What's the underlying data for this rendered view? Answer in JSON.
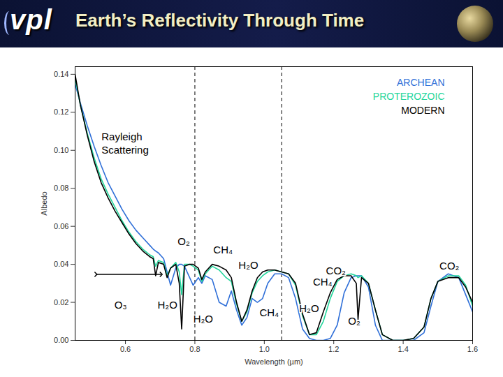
{
  "header": {
    "logo": "vpl"
  },
  "chart_data": {
    "type": "line",
    "title": "Earth’s Reflectivity Through Time",
    "x_label": "Wavelength (µm)",
    "y_label": "Albedo",
    "xlim": [
      0.455,
      1.6
    ],
    "ylim": [
      0,
      0.144
    ],
    "xticks": [
      0.6,
      0.8,
      {
        "value": 1,
        "label": "1.0"
      },
      1.2,
      1.4,
      1.6
    ],
    "yticks": [
      {
        "value": 0,
        "label": "0.00"
      },
      0.02,
      0.04,
      0.06,
      0.08,
      {
        "value": 0.1,
        "label": "0.10"
      },
      0.12,
      0.14
    ],
    "grid": false,
    "legend": "top-right",
    "x": [
      0.455,
      0.47,
      0.49,
      0.51,
      0.53,
      0.55,
      0.57,
      0.59,
      0.61,
      0.63,
      0.65,
      0.67,
      0.68,
      0.687,
      0.695,
      0.71,
      0.72,
      0.73,
      0.745,
      0.755,
      0.762,
      0.77,
      0.785,
      0.795,
      0.81,
      0.82,
      0.83,
      0.85,
      0.87,
      0.89,
      0.905,
      0.92,
      0.935,
      0.95,
      0.965,
      0.98,
      0.995,
      1.01,
      1.03,
      1.05,
      1.07,
      1.09,
      1.11,
      1.13,
      1.15,
      1.17,
      1.19,
      1.21,
      1.23,
      1.25,
      1.265,
      1.27,
      1.28,
      1.3,
      1.32,
      1.34,
      1.37,
      1.4,
      1.43,
      1.46,
      1.48,
      1.5,
      1.53,
      1.56,
      1.58,
      1.6
    ],
    "series": [
      {
        "name": "ARCHEAN",
        "color": "#2f6fd8",
        "values": [
          0.135,
          0.125,
          0.113,
          0.102,
          0.092,
          0.083,
          0.076,
          0.069,
          0.063,
          0.058,
          0.054,
          0.05,
          0.048,
          0.047,
          0.046,
          0.043,
          0.036,
          0.029,
          0.038,
          0.04,
          0.04,
          0.039,
          0.033,
          0.029,
          0.033,
          0.03,
          0.034,
          0.032,
          0.02,
          0.018,
          0.026,
          0.016,
          0.008,
          0.012,
          0.022,
          0.02,
          0.022,
          0.03,
          0.035,
          0.035,
          0.033,
          0.022,
          0.006,
          0.001,
          0,
          0,
          0.001,
          0.008,
          0.025,
          0.033,
          0.034,
          0.034,
          0.034,
          0.028,
          0.008,
          0,
          0,
          0,
          0,
          0.004,
          0.018,
          0.031,
          0.035,
          0.033,
          0.024,
          0.015
        ]
      },
      {
        "name": "PROTEROZOIC",
        "color": "#22d69c",
        "values": [
          0.138,
          0.124,
          0.109,
          0.096,
          0.085,
          0.077,
          0.07,
          0.063,
          0.057,
          0.052,
          0.048,
          0.045,
          0.044,
          0.039,
          0.042,
          0.041,
          0.034,
          0.038,
          0.041,
          0.036,
          0.024,
          0.04,
          0.04,
          0.039,
          0.037,
          0.031,
          0.035,
          0.039,
          0.037,
          0.033,
          0.031,
          0.019,
          0.01,
          0.015,
          0.025,
          0.031,
          0.034,
          0.036,
          0.037,
          0.036,
          0.035,
          0.029,
          0.013,
          0.003,
          0.003,
          0.01,
          0.022,
          0.031,
          0.034,
          0.035,
          0.034,
          0.033,
          0.034,
          0.03,
          0.016,
          0.003,
          0,
          0,
          0.001,
          0.007,
          0.022,
          0.031,
          0.034,
          0.034,
          0.029,
          0.018
        ]
      },
      {
        "name": "MODERN",
        "color": "#000000",
        "values": [
          0.14,
          0.124,
          0.108,
          0.094,
          0.083,
          0.075,
          0.068,
          0.062,
          0.056,
          0.051,
          0.047,
          0.044,
          0.043,
          0.034,
          0.041,
          0.04,
          0.033,
          0.038,
          0.04,
          0.03,
          0.006,
          0.039,
          0.04,
          0.04,
          0.038,
          0.032,
          0.036,
          0.04,
          0.039,
          0.037,
          0.033,
          0.02,
          0.01,
          0.016,
          0.026,
          0.033,
          0.036,
          0.037,
          0.037,
          0.036,
          0.035,
          0.03,
          0.014,
          0.003,
          0.004,
          0.015,
          0.025,
          0.032,
          0.034,
          0.034,
          0.03,
          0.011,
          0.033,
          0.03,
          0.016,
          0.003,
          0,
          0,
          0.001,
          0.007,
          0.022,
          0.031,
          0.033,
          0.033,
          0.028,
          0.02
        ]
      }
    ],
    "reference_lines": [
      {
        "x": 0.8,
        "line_style": "dashed"
      },
      {
        "x": 1.05,
        "line_style": "dashed"
      }
    ],
    "arrows": [
      {
        "x1": 0.515,
        "x2": 0.703,
        "y": 0.0347
      }
    ],
    "annotations": [
      {
        "text": "Rayleigh Scattering",
        "x": 0.531,
        "y": 0.104
      },
      {
        "text": "O₂",
        "x": 0.768,
        "y": 0.052
      },
      {
        "text": "CH₄",
        "x": 0.881,
        "y": 0.0475
      },
      {
        "text": "H₂O",
        "x": 0.954,
        "y": 0.0395
      },
      {
        "text": "O₃",
        "x": 0.586,
        "y": 0.0183
      },
      {
        "text": "H₂O",
        "x": 0.721,
        "y": 0.0183
      },
      {
        "text": "H₂O",
        "x": 0.824,
        "y": 0.011
      },
      {
        "text": "CH₄",
        "x": 1.014,
        "y": 0.0146
      },
      {
        "text": "CO₂",
        "x": 1.206,
        "y": 0.0365
      },
      {
        "text": "CH₄",
        "x": 1.168,
        "y": 0.0307
      },
      {
        "text": "H₂O",
        "x": 1.129,
        "y": 0.0165
      },
      {
        "text": "O₂",
        "x": 1.259,
        "y": 0.0099
      },
      {
        "text": "CO₂",
        "x": 1.533,
        "y": 0.039
      }
    ]
  }
}
